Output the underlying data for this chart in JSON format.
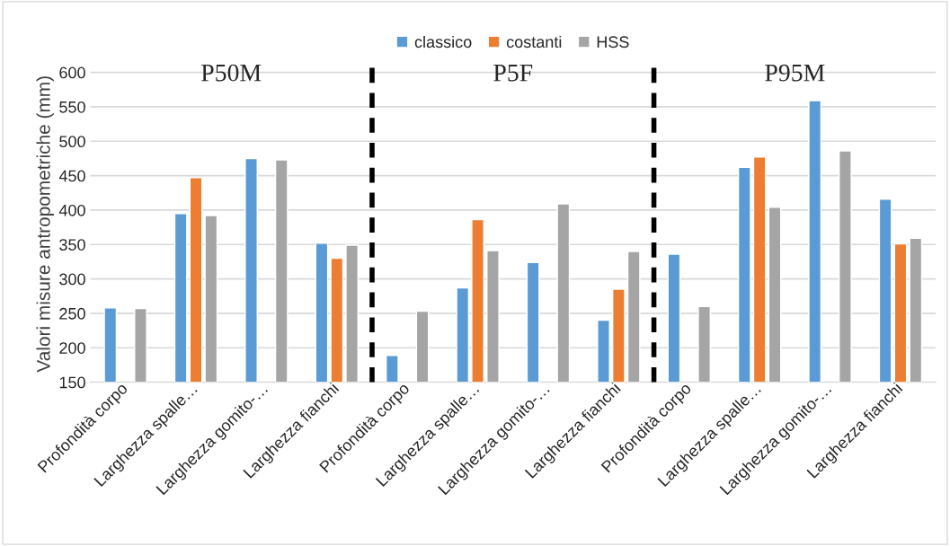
{
  "chart_data": {
    "type": "bar",
    "ylabel": "Valori misure antropometriche (mm)",
    "categories": [
      "Profondità corpo",
      "Larghezza spalle…",
      "Larghezza gomito-…",
      "Larghezza fianchi",
      "Profondità corpo",
      "Larghezza spalle…",
      "Larghezza gomito-…",
      "Larghezza fianchi",
      "Profondità corpo",
      "Larghezza spalle…",
      "Larghezza gomito-…",
      "Larghezza fianchi"
    ],
    "series": [
      {
        "name": "classico",
        "color": "#5b9bd5",
        "values": [
          258,
          395,
          475,
          352,
          189,
          287,
          324,
          240,
          336,
          462,
          559,
          416
        ]
      },
      {
        "name": "costanti",
        "color": "#ed7d31",
        "values": [
          null,
          447,
          null,
          330,
          null,
          386,
          null,
          285,
          null,
          477,
          null,
          351
        ]
      },
      {
        "name": "HSS",
        "color": "#a5a5a5",
        "values": [
          257,
          392,
          473,
          349,
          253,
          341,
          409,
          340,
          260,
          404,
          486,
          359
        ]
      }
    ],
    "ylim": [
      150,
      610
    ],
    "yticks": [
      150,
      200,
      250,
      300,
      350,
      400,
      450,
      500,
      550,
      600
    ],
    "grid": "y",
    "legend": "top",
    "annotations": [
      "P50M",
      "P5F",
      "P95M"
    ]
  }
}
